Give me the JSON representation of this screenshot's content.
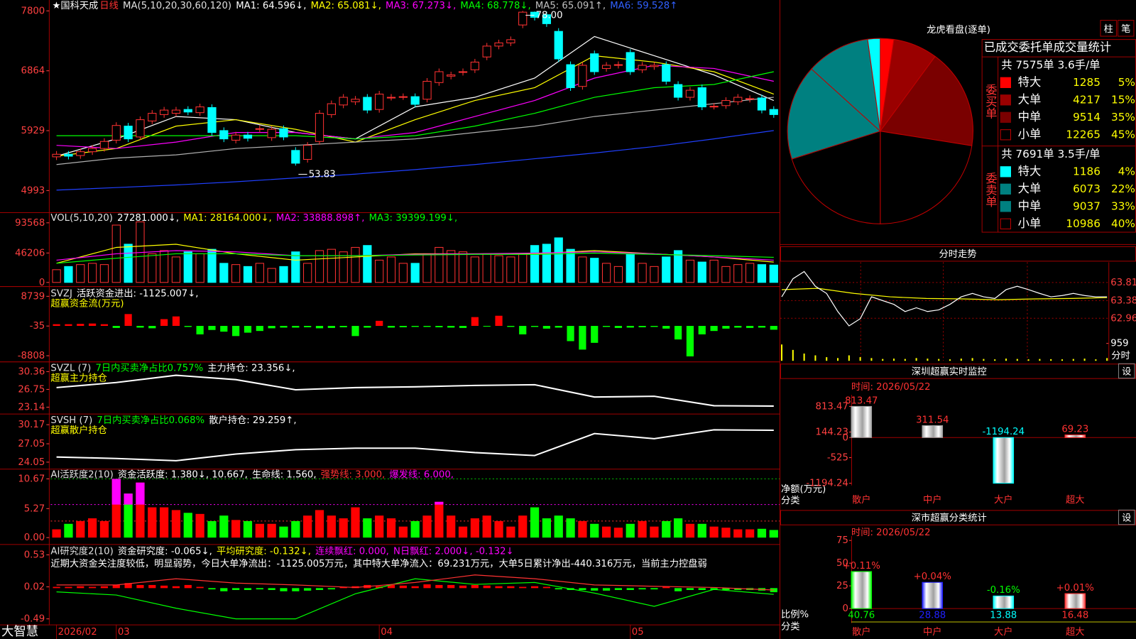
{
  "brand": "大智慧",
  "x_labels": [
    "2026/02",
    "03",
    "04",
    "05"
  ],
  "x_label_index": [
    0,
    5,
    27,
    48
  ],
  "main": {
    "type": "candlestick",
    "stock": "★国科天成",
    "period": "日线",
    "header": [
      {
        "text": "MA(5,10,20,30,60,120)",
        "color": "#e0e0e0"
      },
      {
        "text": "MA1: 64.596↓,",
        "color": "#ffffff"
      },
      {
        "text": "MA2: 65.081↓,",
        "color": "#ffff00"
      },
      {
        "text": "MA3: 67.273↓,",
        "color": "#ff00ff"
      },
      {
        "text": "MA4: 68.778↓,",
        "color": "#00ff00"
      },
      {
        "text": "MA5: 65.091↑,",
        "color": "#c0c0c0"
      },
      {
        "text": "MA6: 59.528↑",
        "color": "#3060ff"
      }
    ],
    "ylim": [
      4665,
      7970
    ],
    "yticks": [
      7800,
      6864,
      5929,
      4993
    ],
    "max_label": "78.00",
    "min_label": "53.83",
    "up_color": "#ff3232",
    "down_color": "#00ffff",
    "open": [
      5520,
      5560,
      5540,
      5600,
      5650,
      5780,
      6000,
      5830,
      6080,
      6180,
      6200,
      6260,
      6210,
      6290,
      5930,
      5780,
      5860,
      5950,
      5820,
      5960,
      5620,
      5480,
      5760,
      6180,
      6330,
      6380,
      6450,
      6260,
      6450,
      6460,
      6460,
      6420,
      6680,
      6780,
      6840,
      6880,
      7080,
      7250,
      7300,
      7580,
      7780,
      7740,
      7480,
      6960,
      6620,
      7130,
      6900,
      6950,
      7150,
      6880,
      6930,
      6960,
      6650,
      6450,
      6600,
      6310,
      6320,
      6380,
      6420,
      6440,
      6260
    ],
    "close": [
      5560,
      5530,
      5600,
      5650,
      5760,
      6010,
      5800,
      6100,
      6200,
      6250,
      6250,
      6220,
      6300,
      5900,
      5800,
      5860,
      5810,
      5960,
      5950,
      5830,
      5420,
      5700,
      6200,
      6350,
      6450,
      6420,
      6250,
      6500,
      6450,
      6460,
      6340,
      6700,
      6850,
      6800,
      6850,
      7000,
      7250,
      7300,
      7350,
      7780,
      7700,
      7600,
      7050,
      6600,
      6950,
      6850,
      6950,
      6960,
      6850,
      6950,
      6950,
      6700,
      6450,
      6560,
      6300,
      6310,
      6400,
      6450,
      6430,
      6250,
      6180
    ],
    "high": [
      5610,
      5610,
      5650,
      5700,
      5810,
      6060,
      6050,
      6150,
      6250,
      6300,
      6300,
      6310,
      6350,
      6340,
      5980,
      5910,
      5910,
      6010,
      6000,
      6010,
      5670,
      5750,
      6250,
      6400,
      6500,
      6470,
      6500,
      6550,
      6500,
      6510,
      6510,
      6750,
      6900,
      6850,
      6900,
      7050,
      7300,
      7350,
      7400,
      7800,
      7790,
      7790,
      7530,
      7010,
      7000,
      7180,
      7000,
      7010,
      7200,
      7000,
      7000,
      7010,
      6700,
      6610,
      6650,
      6360,
      6450,
      6500,
      6480,
      6490,
      6310
    ],
    "low": [
      5470,
      5480,
      5490,
      5550,
      5600,
      5730,
      5750,
      5780,
      6030,
      6130,
      6150,
      6170,
      6160,
      5850,
      5750,
      5730,
      5760,
      5900,
      5770,
      5780,
      5383,
      5430,
      5710,
      6130,
      6280,
      6330,
      6200,
      6210,
      6400,
      6410,
      6290,
      6370,
      6630,
      6730,
      6790,
      6830,
      7030,
      7200,
      7250,
      7530,
      7650,
      7550,
      7000,
      6550,
      6570,
      6800,
      6850,
      6900,
      6800,
      6830,
      6880,
      6650,
      6400,
      6400,
      6250,
      6260,
      6270,
      6330,
      6370,
      6200,
      6130
    ],
    "line_x": [
      0,
      5,
      10,
      15,
      20,
      25,
      30,
      35,
      40,
      45,
      50,
      55,
      60
    ],
    "lines": [
      {
        "color": "#ffffff",
        "values": [
          5530,
          5800,
          6150,
          6100,
          5900,
          5800,
          6300,
          6450,
          6750,
          7400,
          7100,
          6800,
          6400
        ]
      },
      {
        "color": "#ffff00",
        "values": [
          5530,
          5650,
          6000,
          6100,
          5950,
          5750,
          6100,
          6400,
          6600,
          7100,
          7000,
          6850,
          6500
        ]
      },
      {
        "color": "#ff00ff",
        "values": [
          5700,
          5650,
          5750,
          5900,
          5900,
          5800,
          5900,
          6150,
          6400,
          6750,
          6950,
          6900,
          6700
        ]
      },
      {
        "color": "#00ff00",
        "values": [
          5850,
          5850,
          5850,
          5850,
          5850,
          5800,
          5850,
          6000,
          6200,
          6450,
          6600,
          6650,
          6850
        ]
      },
      {
        "color": "#b0b0b0",
        "values": [
          5400,
          5500,
          5550,
          5650,
          5700,
          5750,
          5800,
          5900,
          6000,
          6150,
          6250,
          6350,
          6450
        ]
      },
      {
        "color": "#2040ff",
        "values": [
          5000,
          5040,
          5080,
          5130,
          5190,
          5250,
          5320,
          5400,
          5490,
          5580,
          5680,
          5800,
          5930
        ]
      }
    ]
  },
  "volume": {
    "type": "volume",
    "header": [
      {
        "text": "VOL(5,10,20)",
        "color": "#e0e0e0"
      },
      {
        "text": "27281.000↓,",
        "color": "#ffffff"
      },
      {
        "text": "MA1: 28164.000↓,",
        "color": "#ffff00"
      },
      {
        "text": "MA2: 33888.898↑,",
        "color": "#ff00ff"
      },
      {
        "text": "MA3: 39399.199↓,",
        "color": "#00ff00"
      }
    ],
    "ylim": [
      -4736,
      108960
    ],
    "yticks": [
      93568,
      46206,
      0
    ],
    "values": [
      20000,
      25000,
      28000,
      30000,
      28000,
      90000,
      60000,
      95000,
      45000,
      50000,
      40000,
      48000,
      45000,
      52000,
      30000,
      28000,
      25000,
      30000,
      22000,
      25000,
      48000,
      30000,
      50000,
      52000,
      48000,
      55000,
      58000,
      35000,
      40000,
      30000,
      30000,
      45000,
      55000,
      50000,
      48000,
      40000,
      45000,
      42000,
      40000,
      45000,
      58000,
      60000,
      70000,
      52000,
      40000,
      38000,
      30000,
      25000,
      45000,
      30000,
      25000,
      40000,
      50000,
      35000,
      32000,
      35000,
      25000,
      28000,
      30000,
      28000,
      27281
    ],
    "lines": [
      {
        "color": "#ffff00",
        "values": [
          30000,
          55000,
          60000,
          45000,
          35000,
          40000,
          45000,
          45000,
          45000,
          50000,
          45000,
          40000,
          32000
        ]
      },
      {
        "color": "#ff00ff",
        "values": [
          35000,
          45000,
          50000,
          48000,
          42000,
          42000,
          44000,
          45000,
          46000,
          48000,
          45000,
          40000,
          35000
        ]
      },
      {
        "color": "#00ff00",
        "values": [
          30000,
          38000,
          45000,
          45000,
          42000,
          42000,
          43000,
          44000,
          44000,
          46000,
          44000,
          42000,
          39399
        ]
      }
    ]
  },
  "svzj": {
    "type": "signed-bar",
    "header": [
      {
        "text": "SVZJ",
        "color": "#e0e0e0"
      },
      {
        "text": "活跃资金进出: -1125.007↓,",
        "color": "#ffffff"
      }
    ],
    "subtitle": "超赢资金流(万元)",
    "ylim": [
      -10306,
      11521
    ],
    "yticks": [
      8739,
      -35,
      -8808
    ],
    "values": [
      500,
      500,
      600,
      700,
      500,
      -600,
      3500,
      -500,
      -700,
      2000,
      2800,
      -300,
      -2500,
      -1200,
      -1700,
      -3000,
      -2000,
      -1500,
      -700,
      -500,
      -500,
      -400,
      -700,
      -600,
      -400,
      -3000,
      -500,
      1500,
      -500,
      -400,
      -300,
      -300,
      -400,
      -500,
      -600,
      2600,
      -200,
      3000,
      -300,
      -2500,
      -300,
      -800,
      -500,
      -4500,
      -7000,
      -5000,
      -300,
      -600,
      -500,
      -400,
      -300,
      -800,
      -4000,
      -9000,
      -2500,
      -1500,
      -800,
      -500,
      -600,
      -500,
      -1125
    ]
  },
  "svzl": {
    "type": "line",
    "header": [
      {
        "text": "SVZL (7)",
        "color": "#e0e0e0"
      },
      {
        "text": "7日内买卖净占比0.757%",
        "color": "#00ff00"
      },
      {
        "text": "主力持仓: 23.356↓,",
        "color": "#ffffff"
      }
    ],
    "subtitle": "超赢主力持仓",
    "ylim": [
      21.96,
      32.27
    ],
    "yticks": [
      30.36,
      26.75,
      23.14
    ],
    "color": "#ffffff",
    "values": [
      27.12,
      28.15,
      29.62,
      28.74,
      26.68,
      27.12,
      27.27,
      27.56,
      27.71,
      25.2,
      25.35,
      23.44,
      23.356
    ]
  },
  "svsh": {
    "type": "line",
    "header": [
      {
        "text": "SVSH (7)",
        "color": "#e0e0e0"
      },
      {
        "text": "7日内买卖净占比0.068%",
        "color": "#00ff00"
      },
      {
        "text": "散户持仓: 29.259↑,",
        "color": "#ffffff"
      }
    ],
    "subtitle": "超赢散户持仓",
    "ylim": [
      23.09,
      31.85
    ],
    "yticks": [
      30.17,
      27.05,
      24.05
    ],
    "color": "#ffffff",
    "values": [
      24.89,
      24.65,
      24.29,
      25.37,
      26.09,
      26.33,
      26.33,
      25.61,
      25.13,
      28.73,
      27.89,
      29.33,
      29.259
    ]
  },
  "activity": {
    "type": "level-bar",
    "header": [
      {
        "text": "AI活跃度2(10)",
        "color": "#e0e0e0"
      },
      {
        "text": "资金活跃度: 1.380↓, 10.667,",
        "color": "#ffffff"
      },
      {
        "text": "生命线: 1.560,",
        "color": "#ffffff"
      },
      {
        "text": "强势线: 3.000,",
        "color": "#ff3232"
      },
      {
        "text": "爆发线: 6.000,",
        "color": "#ff00ff"
      }
    ],
    "ylim": [
      -1.05,
      12.38
    ],
    "yticks": [
      10.67,
      5.27,
      {
        "value": 0,
        "label": "0.00"
      }
    ],
    "levels": [
      {
        "value": 3,
        "color": "#ff3232"
      },
      {
        "value": 6,
        "color": "#ff00ff"
      },
      {
        "value": 10.667,
        "color": "#00c000"
      }
    ],
    "values": [
      1.5,
      2.5,
      3,
      3.5,
      3,
      10.67,
      8,
      10,
      5.5,
      5.5,
      5,
      4.5,
      4.3,
      3,
      4,
      3.2,
      3,
      2.5,
      2.5,
      2,
      3,
      4,
      5,
      4,
      3.5,
      5.5,
      3.5,
      4,
      3.5,
      2,
      3,
      4,
      6.5,
      4,
      2,
      3.5,
      4,
      3,
      2,
      4,
      5.5,
      3.5,
      4,
      3.5,
      3,
      2.5,
      2,
      1.8,
      2.5,
      3,
      2,
      3,
      3.5,
      2.5,
      2.5,
      2,
      1.8,
      1.5,
      1.5,
      1.6,
      1.38
    ]
  },
  "research": {
    "type": "signed-bar",
    "header": [
      {
        "text": "AI研究度2(10)",
        "color": "#e0e0e0"
      },
      {
        "text": "资金研究度: -0.065↓,",
        "color": "#ffffff"
      },
      {
        "text": "平均研究度: -0.132↓,",
        "color": "#ffff00"
      },
      {
        "text": "连续飘红: 0.000,",
        "color": "#ff00ff"
      },
      {
        "text": "N日飘红: 2.000↓, -0.132↓",
        "color": "#ff00ff"
      }
    ],
    "note": "近期大资金关注度较低，明显弱势，今日大单净流出：-1125.005万元，其中特大单净流入：69.231万元，大单5日累计净出-440.316万元，当前主力控盘弱",
    "ylim": [
      -0.58,
      0.69
    ],
    "yticks": [
      0.53,
      0.02,
      -0.49
    ],
    "values": [
      0.02,
      0.02,
      0.03,
      0.02,
      0.03,
      0.05,
      0.08,
      0.05,
      0.05,
      0.04,
      0.03,
      0.05,
      0.02,
      -0.02,
      -0.05,
      -0.03,
      -0.03,
      -0.02,
      -0.03,
      -0.05,
      -0.05,
      -0.04,
      -0.03,
      -0.02,
      0.02,
      0.03,
      0.05,
      0.03,
      0.05,
      0.04,
      0.03,
      0.06,
      0.05,
      0.05,
      0.04,
      0.05,
      0.04,
      0.03,
      0.03,
      0.02,
      0.03,
      0.02,
      -0.02,
      -0.03,
      -0.03,
      -0.04,
      -0.04,
      -0.03,
      -0.03,
      -0.02,
      -0.02,
      0.02,
      -0.05,
      -0.03,
      -0.03,
      -0.03,
      -0.03,
      -0.03,
      -0.03,
      -0.04,
      -0.065
    ],
    "lines": [
      {
        "color": "#00ff00",
        "values": [
          -0.06,
          -0.11,
          -0.32,
          -0.49,
          -0.49,
          -0.09,
          0.15,
          0.06,
          0.09,
          -0.08,
          -0.29,
          -0.02,
          -0.1
        ]
      },
      {
        "color": "#ff3232",
        "values": [
          0.05,
          0.05,
          0.15,
          0.08,
          0.05,
          0.01,
          0.09,
          0.21,
          0.15,
          0.05,
          0.03,
          0.01,
          -0.03
        ]
      }
    ]
  },
  "pie": {
    "title": "龙虎看盘(逐单)",
    "buttons": [
      "柱",
      "笔"
    ]
  },
  "order_stats": {
    "title": "已成交委托单成交量统计",
    "buy": {
      "label": "委买单",
      "summary": "共 7575单 3.6手/单",
      "rows": [
        {
          "name": "特大",
          "volume": 1285,
          "share": "5%",
          "color": "#ff0000"
        },
        {
          "name": "大单",
          "volume": 4217,
          "share": "15%",
          "color": "#9a0000"
        },
        {
          "name": "中单",
          "volume": 9514,
          "share": "35%",
          "color": "#7a0000"
        },
        {
          "name": "小单",
          "volume": 12265,
          "share": "45%",
          "color": "#000000"
        }
      ]
    },
    "sell": {
      "label": "委卖单",
      "summary": "共 7691单 3.5手/单",
      "rows": [
        {
          "name": "特大",
          "volume": 1186,
          "share": "4%",
          "color": "#00ffff"
        },
        {
          "name": "大单",
          "volume": 6073,
          "share": "22%",
          "color": "#008080"
        },
        {
          "name": "中单",
          "volume": 9037,
          "share": "33%",
          "color": "#008080"
        },
        {
          "name": "小单",
          "volume": 10986,
          "share": "40%",
          "color": "#000000"
        }
      ]
    }
  },
  "intraday": {
    "type": "line",
    "title": "分时走势",
    "corner_label": "分时",
    "ylim": [
      62.69,
      64.29
    ],
    "yticks": [
      63.81,
      63.38,
      62.96
    ],
    "price": [
      63.47,
      63.9,
      64.07,
      63.72,
      63.55,
      63.12,
      62.78,
      62.95,
      63.47,
      63.38,
      63.29,
      63.12,
      63.21,
      63.12,
      63.16,
      63.29,
      63.47,
      63.55,
      63.47,
      63.43,
      63.64,
      63.72,
      63.64,
      63.55,
      63.47,
      63.5,
      63.55,
      63.5,
      63.47,
      63.47
    ],
    "avg": [
      63.64,
      63.67,
      63.55,
      63.47,
      63.43,
      63.42,
      63.4,
      63.42,
      63.43,
      63.45
    ],
    "vol_ylim": [
      0,
      1518
    ],
    "vol_ticks": [
      959
    ],
    "volume": [
      900,
      600,
      400,
      300,
      200,
      150,
      300,
      200,
      150,
      100,
      120,
      100,
      150,
      120,
      100,
      80,
      120,
      150,
      100,
      80,
      120,
      100,
      80,
      100,
      90,
      80,
      100,
      120,
      80,
      150
    ]
  },
  "sz_monitor": {
    "type": "bar",
    "title": "深圳超赢实时监控",
    "button": "设",
    "time": "时间: 2026/05/22",
    "y_label": "净额(万元)",
    "x_label": "分类",
    "categories": [
      "散户",
      "中户",
      "大户",
      "超大"
    ],
    "colors": [
      "#a0a0a0",
      "#a0a0a0",
      "#00ffff",
      "#ff3232"
    ],
    "values": [
      813.47,
      311.54,
      -1194.24,
      69.23
    ],
    "ylim": [
      -1194.24,
      1059
    ],
    "yticks": [
      813.47,
      144.23,
      0,
      -525,
      -1194.24
    ]
  },
  "sz_stats": {
    "type": "bar",
    "title": "深市超赢分类统计",
    "button": "设",
    "time": "时间: 2026/05/22",
    "y_label": "比例%",
    "x_label": "分类",
    "categories": [
      "散户",
      "中户",
      "大户",
      "超大"
    ],
    "colors": [
      "#00ff00",
      "#2020ff",
      "#00ffff",
      "#ff3232"
    ],
    "values": [
      40.76,
      28.88,
      13.88,
      16.48
    ],
    "changes": [
      "+0.11%",
      "+0.04%",
      "-0.16%",
      "+0.01%"
    ],
    "ylim": [
      0,
      80
    ],
    "yticks": [
      0,
      25,
      50,
      75
    ]
  }
}
